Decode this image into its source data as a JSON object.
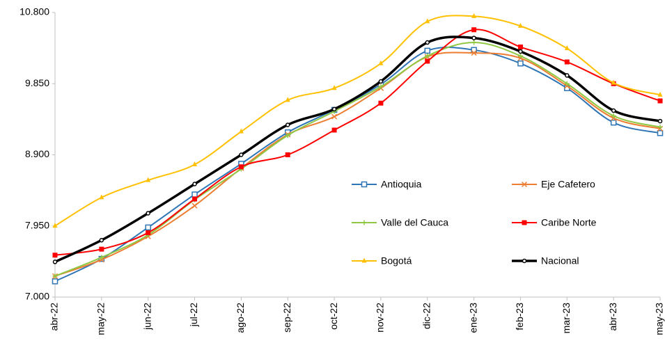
{
  "chart_data": {
    "type": "line",
    "categories": [
      "abr-22",
      "may-22",
      "jun-22",
      "jul-22",
      "ago-22",
      "sep-22",
      "oct-22",
      "nov-22",
      "dic-22",
      "ene-23",
      "feb-23",
      "mar-23",
      "abr-23",
      "may-23"
    ],
    "ylim": [
      7000,
      10800
    ],
    "yticks": [
      {
        "value": 7000,
        "label": "7.000"
      },
      {
        "value": 7950,
        "label": "7.950"
      },
      {
        "value": 8900,
        "label": "8.900"
      },
      {
        "value": 9850,
        "label": "9.850"
      },
      {
        "value": 10800,
        "label": "10.800"
      }
    ],
    "grid": false,
    "smooth": true,
    "legend": "inside-right",
    "series": [
      {
        "name": "Antioquia",
        "color": "#2e75b6",
        "marker": "open-square",
        "line_width": 2,
        "values": [
          7210,
          7510,
          7930,
          8370,
          8780,
          9200,
          9500,
          9840,
          10290,
          10300,
          10120,
          9790,
          9330,
          9190
        ]
      },
      {
        "name": "Eje Cafetero",
        "color": "#ed7d31",
        "marker": "x",
        "line_width": 2,
        "values": [
          7280,
          7500,
          7810,
          8220,
          8720,
          9170,
          9410,
          9790,
          10210,
          10260,
          10190,
          9820,
          9390,
          9250
        ]
      },
      {
        "name": "Valle del Cauca",
        "color": "#8fc843",
        "marker": "plus",
        "line_width": 2,
        "values": [
          7280,
          7530,
          7830,
          8300,
          8710,
          9160,
          9480,
          9810,
          10220,
          10400,
          10220,
          9850,
          9420,
          9270
        ]
      },
      {
        "name": "Caribe Norte",
        "color": "#ff0000",
        "marker": "square",
        "line_width": 2,
        "values": [
          7560,
          7640,
          7860,
          8310,
          8740,
          8900,
          9230,
          9590,
          10150,
          10570,
          10340,
          10140,
          9850,
          9620
        ]
      },
      {
        "name": "Bogotá",
        "color": "#ffc000",
        "marker": "triangle",
        "line_width": 2,
        "values": [
          7950,
          8330,
          8560,
          8770,
          9210,
          9630,
          9790,
          10120,
          10680,
          10750,
          10620,
          10320,
          9860,
          9700
        ]
      },
      {
        "name": "Nacional",
        "color": "#000000",
        "marker": "circle",
        "line_width": 3.5,
        "values": [
          7470,
          7760,
          8120,
          8510,
          8900,
          9300,
          9510,
          9880,
          10400,
          10460,
          10280,
          9960,
          9490,
          9350
        ]
      }
    ]
  }
}
